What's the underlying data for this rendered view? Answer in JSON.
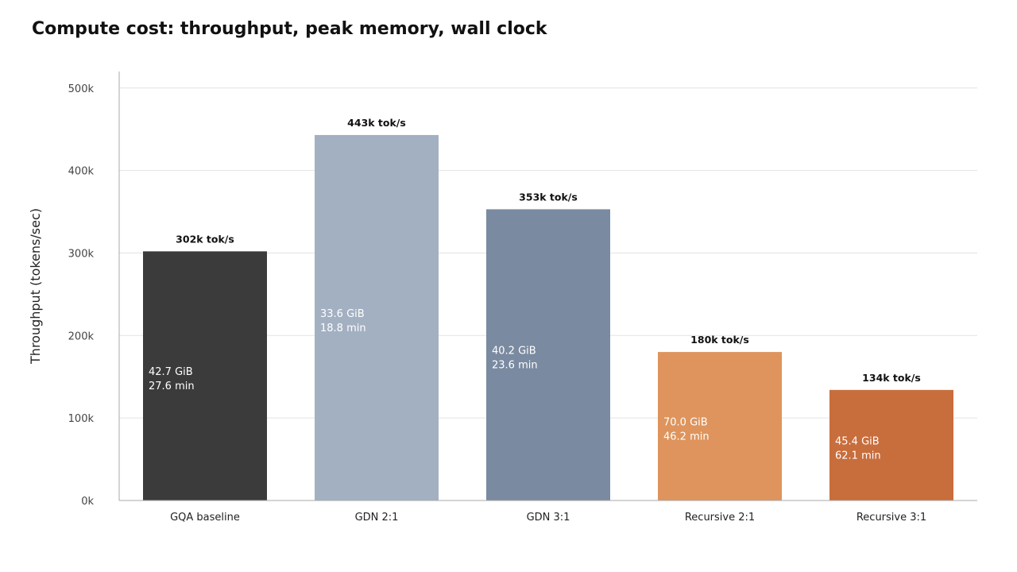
{
  "title": "Compute cost: throughput, peak memory, wall clock",
  "chart_data": {
    "type": "bar",
    "title": "Compute cost: throughput, peak memory, wall clock",
    "xlabel": "",
    "ylabel": "Throughput (tokens/sec)",
    "ylim": [
      0,
      520000
    ],
    "yticks": [
      0,
      100000,
      200000,
      300000,
      400000,
      500000
    ],
    "ytick_labels": [
      "0k",
      "100k",
      "200k",
      "300k",
      "400k",
      "500k"
    ],
    "grid": true,
    "categories": [
      "GQA baseline",
      "GDN 2:1",
      "GDN 3:1",
      "Recursive 2:1",
      "Recursive 3:1"
    ],
    "values": [
      302000,
      443000,
      353000,
      180000,
      134000
    ],
    "value_labels": [
      "302k tok/s",
      "443k tok/s",
      "353k tok/s",
      "180k tok/s",
      "134k tok/s"
    ],
    "memory_labels": [
      "42.7 GiB",
      "33.6 GiB",
      "40.2 GiB",
      "70.0 GiB",
      "45.4 GiB"
    ],
    "wall_clock_labels": [
      "27.6 min",
      "18.8 min",
      "23.6 min",
      "46.2 min",
      "62.1 min"
    ],
    "colors": [
      "#3b3b3b",
      "#a3b0c2",
      "#7a8aa0",
      "#de945c",
      "#c86d3c"
    ]
  }
}
